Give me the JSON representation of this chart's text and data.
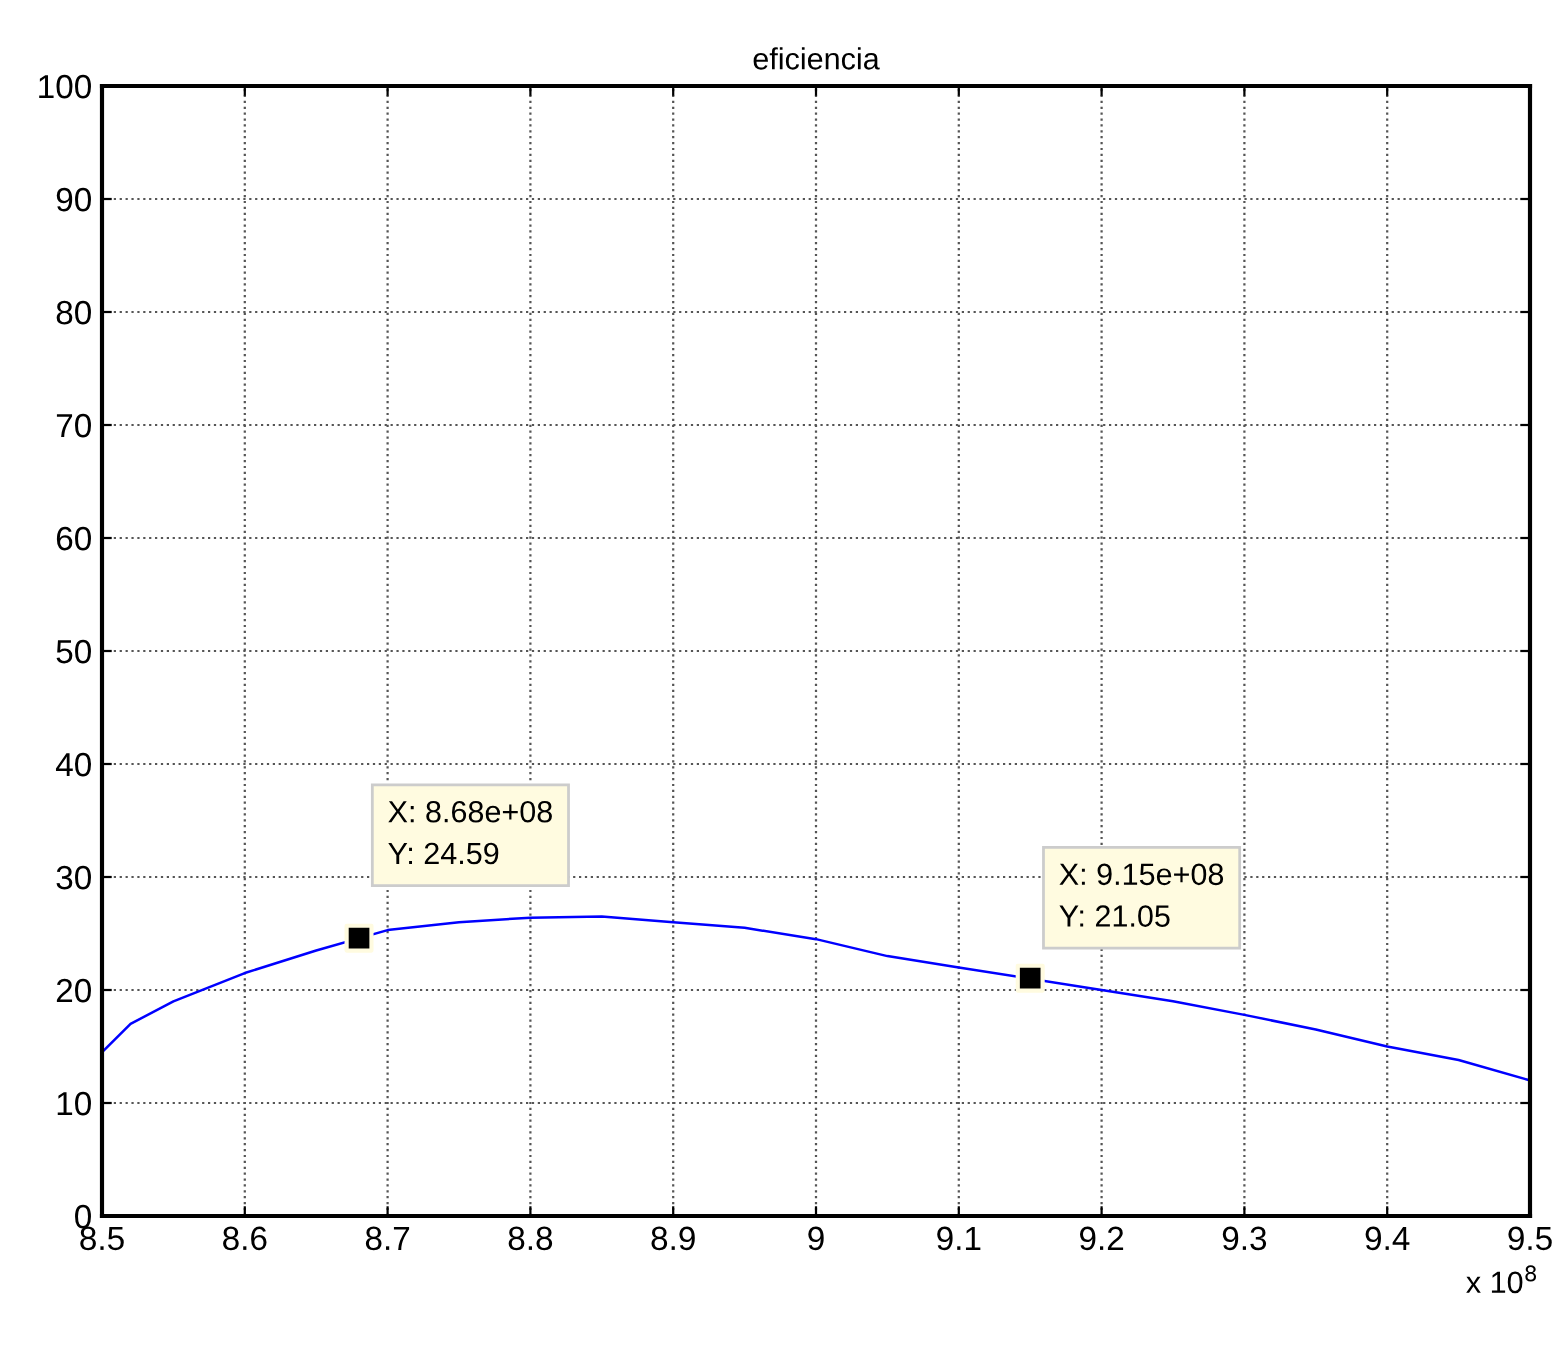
{
  "chart_data": {
    "type": "line",
    "title": "eficiencia",
    "x": [
      8.5,
      8.52,
      8.55,
      8.6,
      8.65,
      8.7,
      8.75,
      8.8,
      8.85,
      8.9,
      8.95,
      9.0,
      9.05,
      9.1,
      9.2,
      9.25,
      9.3,
      9.35,
      9.4,
      9.45,
      9.5
    ],
    "series": [
      {
        "color": "#0000ff",
        "values": [
          14.5,
          17,
          19,
          21.5,
          23.5,
          25.3,
          26,
          26.4,
          26.5,
          26,
          25.5,
          24.5,
          23,
          22,
          20,
          19,
          17.8,
          16.5,
          15,
          13.8,
          12
        ]
      },
      {
        "type": "scatter",
        "color": "#000000",
        "marker": "square",
        "x": [
          8.68,
          9.15
        ],
        "values": [
          24.59,
          21.05
        ]
      }
    ],
    "xlim": [
      8.5,
      9.5
    ],
    "xticks": [
      8.5,
      8.6,
      8.7,
      8.8,
      8.9,
      9,
      9.1,
      9.2,
      9.3,
      9.4,
      9.5
    ],
    "ylim": [
      0,
      100
    ],
    "yticks": [
      0,
      10,
      20,
      30,
      40,
      50,
      60,
      70,
      80,
      90,
      100
    ],
    "grid": true,
    "line_style": "solid",
    "marker": "none",
    "annotations": [
      {
        "text": "X: 8.68e+08\nY: 24.59",
        "x": 8.68,
        "y": 24.59
      },
      {
        "text": "X: 9.15e+08\nY: 21.05",
        "x": 9.15,
        "y": 21.05
      },
      "x 10$^{8}$"
    ]
  }
}
